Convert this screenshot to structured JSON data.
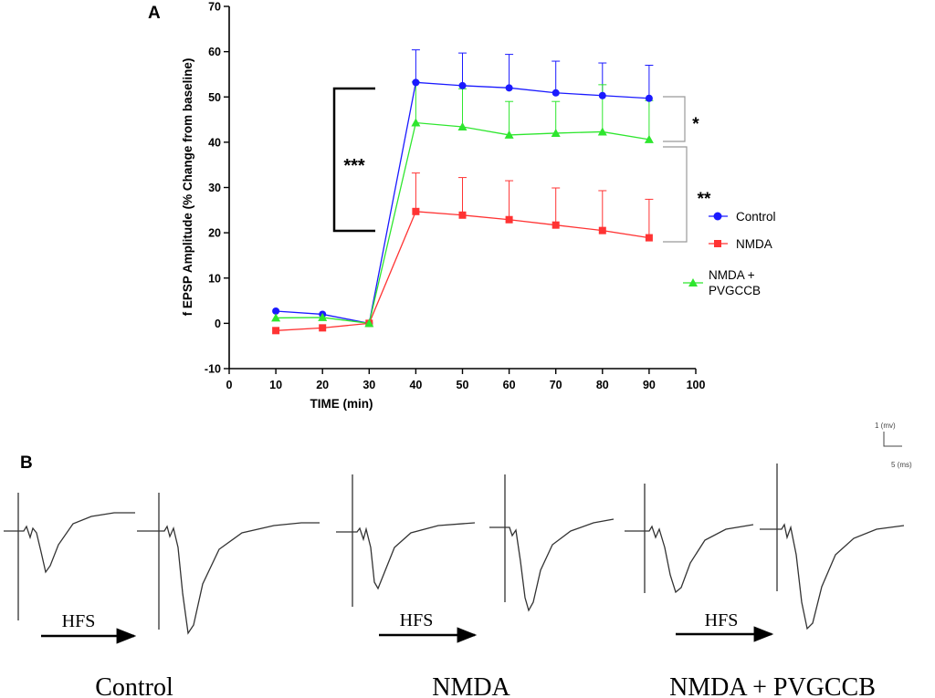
{
  "chart_data": {
    "type": "line",
    "panel_label": "A",
    "title": "",
    "xlabel": "TIME (min)",
    "ylabel": "f EPSP Amplitude (% Change from baseline)",
    "xlim": [
      0,
      100
    ],
    "ylim": [
      -10,
      70
    ],
    "x_ticks": [
      0,
      10,
      20,
      30,
      40,
      50,
      60,
      70,
      80,
      90,
      100
    ],
    "y_ticks": [
      -10,
      0,
      10,
      20,
      30,
      40,
      50,
      60,
      70
    ],
    "x": [
      10,
      20,
      30,
      40,
      50,
      60,
      70,
      80,
      90
    ],
    "series": [
      {
        "name": "Control",
        "color": "#1a1aff",
        "marker": "circle",
        "values": [
          2.7,
          2.0,
          0,
          53.2,
          52.5,
          52.0,
          50.9,
          50.3,
          49.7
        ],
        "error": [
          0,
          0,
          0,
          7.2,
          7.2,
          7.4,
          7.0,
          7.2,
          7.3
        ]
      },
      {
        "name": "NMDA",
        "color": "#ff3333",
        "marker": "square",
        "values": [
          -1.6,
          -1.0,
          0,
          24.7,
          23.9,
          22.9,
          21.7,
          20.5,
          18.9
        ],
        "error": [
          0,
          0,
          0,
          8.5,
          8.3,
          8.6,
          8.2,
          8.8,
          8.5
        ]
      },
      {
        "name": "NMDA + PVGCCB",
        "legend_lines": [
          "NMDA +",
          "PVGCCB"
        ],
        "color": "#2ee62e",
        "marker": "triangle",
        "values": [
          1.2,
          1.3,
          0,
          44.3,
          43.4,
          41.6,
          42.0,
          42.3,
          40.6
        ],
        "error": [
          0,
          0,
          0,
          9.0,
          8.4,
          7.4,
          7.0,
          10.4,
          8.6
        ]
      }
    ],
    "annotations": [
      {
        "text": "***",
        "between_y": [
          20.5,
          51.7
        ],
        "at_x": 23
      },
      {
        "text": "*",
        "between": [
          "Control",
          "NMDA + PVGCCB"
        ]
      },
      {
        "text": "**",
        "between": [
          "NMDA + PVGCCB",
          "NMDA"
        ]
      }
    ],
    "legend_position": "right"
  },
  "panel_b": {
    "label": "B",
    "scale_bar": {
      "vertical_label": "1 (mv)",
      "horizontal_label": "5 (ms)"
    },
    "groups": [
      {
        "name": "Control",
        "arrow_label": "HFS"
      },
      {
        "name": "NMDA",
        "arrow_label": "HFS"
      },
      {
        "name": "NMDA + PVGCCB",
        "arrow_label": "HFS"
      }
    ]
  }
}
